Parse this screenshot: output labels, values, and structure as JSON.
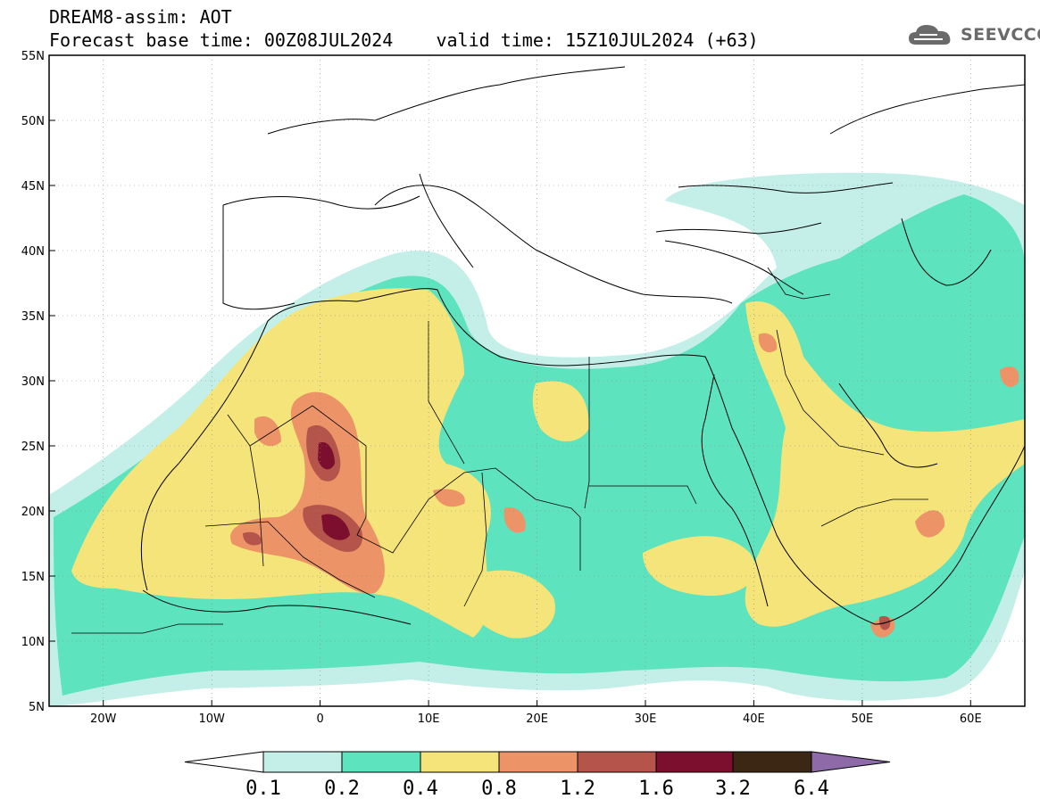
{
  "header": {
    "line1": "DREAM8-assim: AOT",
    "line2": "Forecast base time: 00Z08JUL2024    valid time: 15Z10JUL2024 (+63)"
  },
  "logo": {
    "text": "SEEVCCC",
    "icon": "cloud-icon"
  },
  "map": {
    "lon_range": [
      -25,
      65
    ],
    "lat_range": [
      5,
      55
    ],
    "lat_labels": [
      "55N",
      "50N",
      "45N",
      "40N",
      "35N",
      "30N",
      "25N",
      "20N",
      "15N",
      "10N",
      "5N"
    ],
    "lon_labels": [
      "20W",
      "10W",
      "0",
      "10E",
      "20E",
      "30E",
      "40E",
      "50E",
      "60E"
    ],
    "gridlines": "dotted"
  },
  "colorbar": {
    "labels": [
      "0.1",
      "0.2",
      "0.4",
      "0.8",
      "1.2",
      "1.6",
      "3.2",
      "6.4"
    ],
    "colors": [
      "#ffffff",
      "#c4efe8",
      "#5de3bd",
      "#f4e47a",
      "#ec9468",
      "#b4544a",
      "#7c0f2e",
      "#3c2614",
      "#8e6aa8"
    ]
  },
  "field_colors": {
    "lt_0_2": "#c4efe8",
    "lt_0_4": "#5de3bd",
    "lt_0_8": "#f4e47a",
    "lt_1_2": "#ec9468",
    "lt_1_6": "#b4544a",
    "lt_3_2": "#7c0f2e"
  }
}
